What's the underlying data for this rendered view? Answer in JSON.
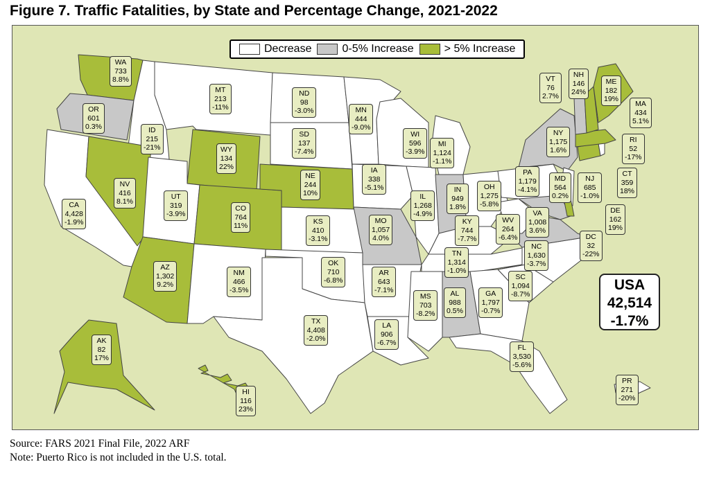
{
  "title": "Figure 7. Traffic Fatalities, by State and Percentage Change, 2021-2022",
  "legend": {
    "decrease": {
      "label": "Decrease",
      "color": "#ffffff"
    },
    "small_increase": {
      "label": "0-5% Increase",
      "color": "#c8c8c8"
    },
    "large_increase": {
      "label": "> 5% Increase",
      "color": "#a8bd3a"
    }
  },
  "usa_total": {
    "name": "USA",
    "fatalities": "42,514",
    "change": "-1.7%"
  },
  "source": "Source: FARS 2021 Final File, 2022 ARF",
  "note": "Note: Puerto Rico is not included in the U.S. total.",
  "states": {
    "WA": {
      "abbr": "WA",
      "fatalities": "733",
      "change": "8.8%",
      "category": "large_increase"
    },
    "OR": {
      "abbr": "OR",
      "fatalities": "601",
      "change": "0.3%",
      "category": "small_increase"
    },
    "CA": {
      "abbr": "CA",
      "fatalities": "4,428",
      "change": "-1.9%",
      "category": "decrease"
    },
    "ID": {
      "abbr": "ID",
      "fatalities": "215",
      "change": "-21%",
      "category": "decrease"
    },
    "NV": {
      "abbr": "NV",
      "fatalities": "416",
      "change": "8.1%",
      "category": "large_increase"
    },
    "MT": {
      "abbr": "MT",
      "fatalities": "213",
      "change": "-11%",
      "category": "decrease"
    },
    "WY": {
      "abbr": "WY",
      "fatalities": "134",
      "change": "22%",
      "category": "large_increase"
    },
    "UT": {
      "abbr": "UT",
      "fatalities": "319",
      "change": "-3.9%",
      "category": "decrease"
    },
    "AZ": {
      "abbr": "AZ",
      "fatalities": "1,302",
      "change": "9.2%",
      "category": "large_increase"
    },
    "CO": {
      "abbr": "CO",
      "fatalities": "764",
      "change": "11%",
      "category": "large_increase"
    },
    "NM": {
      "abbr": "NM",
      "fatalities": "466",
      "change": "-3.5%",
      "category": "decrease"
    },
    "ND": {
      "abbr": "ND",
      "fatalities": "98",
      "change": "-3.0%",
      "category": "decrease"
    },
    "SD": {
      "abbr": "SD",
      "fatalities": "137",
      "change": "-7.4%",
      "category": "decrease"
    },
    "NE": {
      "abbr": "NE",
      "fatalities": "244",
      "change": "10%",
      "category": "large_increase"
    },
    "KS": {
      "abbr": "KS",
      "fatalities": "410",
      "change": "-3.1%",
      "category": "decrease"
    },
    "OK": {
      "abbr": "OK",
      "fatalities": "710",
      "change": "-6.8%",
      "category": "decrease"
    },
    "TX": {
      "abbr": "TX",
      "fatalities": "4,408",
      "change": "-2.0%",
      "category": "decrease"
    },
    "MN": {
      "abbr": "MN",
      "fatalities": "444",
      "change": "-9.0%",
      "category": "decrease"
    },
    "IA": {
      "abbr": "IA",
      "fatalities": "338",
      "change": "-5.1%",
      "category": "decrease"
    },
    "MO": {
      "abbr": "MO",
      "fatalities": "1,057",
      "change": "4.0%",
      "category": "small_increase"
    },
    "AR": {
      "abbr": "AR",
      "fatalities": "643",
      "change": "-7.1%",
      "category": "decrease"
    },
    "LA": {
      "abbr": "LA",
      "fatalities": "906",
      "change": "-6.7%",
      "category": "decrease"
    },
    "WI": {
      "abbr": "WI",
      "fatalities": "596",
      "change": "-3.9%",
      "category": "decrease"
    },
    "IL": {
      "abbr": "IL",
      "fatalities": "1,268",
      "change": "-4.9%",
      "category": "decrease"
    },
    "MI": {
      "abbr": "MI",
      "fatalities": "1,124",
      "change": "-1.1%",
      "category": "decrease"
    },
    "IN": {
      "abbr": "IN",
      "fatalities": "949",
      "change": "1.8%",
      "category": "small_increase"
    },
    "OH": {
      "abbr": "OH",
      "fatalities": "1,275",
      "change": "-5.8%",
      "category": "decrease"
    },
    "KY": {
      "abbr": "KY",
      "fatalities": "744",
      "change": "-7.7%",
      "category": "decrease"
    },
    "TN": {
      "abbr": "TN",
      "fatalities": "1,314",
      "change": "-1.0%",
      "category": "decrease"
    },
    "MS": {
      "abbr": "MS",
      "fatalities": "703",
      "change": "-8.2%",
      "category": "decrease"
    },
    "AL": {
      "abbr": "AL",
      "fatalities": "988",
      "change": "0.5%",
      "category": "small_increase"
    },
    "GA": {
      "abbr": "GA",
      "fatalities": "1,797",
      "change": "-0.7%",
      "category": "decrease"
    },
    "FL": {
      "abbr": "FL",
      "fatalities": "3,530",
      "change": "-5.6%",
      "category": "decrease"
    },
    "SC": {
      "abbr": "SC",
      "fatalities": "1,094",
      "change": "-8.7%",
      "category": "decrease"
    },
    "NC": {
      "abbr": "NC",
      "fatalities": "1,630",
      "change": "-3.7%",
      "category": "decrease"
    },
    "VA": {
      "abbr": "VA",
      "fatalities": "1,008",
      "change": "3.6%",
      "category": "small_increase"
    },
    "WV": {
      "abbr": "WV",
      "fatalities": "264",
      "change": "-6.4%",
      "category": "decrease"
    },
    "PA": {
      "abbr": "PA",
      "fatalities": "1,179",
      "change": "-4.1%",
      "category": "decrease"
    },
    "MD": {
      "abbr": "MD",
      "fatalities": "564",
      "change": "0.2%",
      "category": "small_increase"
    },
    "DE": {
      "abbr": "DE",
      "fatalities": "162",
      "change": "19%",
      "category": "large_increase"
    },
    "DC": {
      "abbr": "DC",
      "fatalities": "32",
      "change": "-22%",
      "category": "decrease"
    },
    "NJ": {
      "abbr": "NJ",
      "fatalities": "685",
      "change": "-1.0%",
      "category": "decrease"
    },
    "NY": {
      "abbr": "NY",
      "fatalities": "1,175",
      "change": "1.6%",
      "category": "small_increase"
    },
    "CT": {
      "abbr": "CT",
      "fatalities": "359",
      "change": "18%",
      "category": "large_increase"
    },
    "RI": {
      "abbr": "RI",
      "fatalities": "52",
      "change": "-17%",
      "category": "decrease"
    },
    "MA": {
      "abbr": "MA",
      "fatalities": "434",
      "change": "5.1%",
      "category": "large_increase"
    },
    "VT": {
      "abbr": "VT",
      "fatalities": "76",
      "change": "2.7%",
      "category": "small_increase"
    },
    "NH": {
      "abbr": "NH",
      "fatalities": "146",
      "change": "24%",
      "category": "large_increase"
    },
    "ME": {
      "abbr": "ME",
      "fatalities": "182",
      "change": "19%",
      "category": "large_increase"
    },
    "AK": {
      "abbr": "AK",
      "fatalities": "82",
      "change": "17%",
      "category": "large_increase"
    },
    "HI": {
      "abbr": "HI",
      "fatalities": "116",
      "change": "23%",
      "category": "large_increase"
    },
    "PR": {
      "abbr": "PR",
      "fatalities": "271",
      "change": "-20%",
      "category": "decrease"
    }
  }
}
